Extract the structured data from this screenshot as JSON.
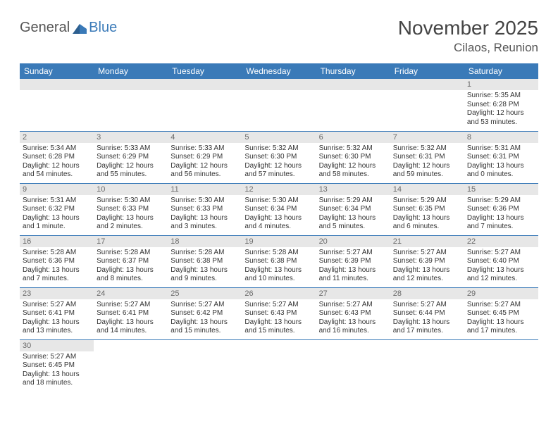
{
  "logo": {
    "part1": "General",
    "part2": "Blue"
  },
  "title": "November 2025",
  "subtitle": "Cilaos, Reunion",
  "colors": {
    "header_bg": "#3a7ab8",
    "header_text": "#ffffff",
    "daynum_bg": "#e7e7e7",
    "daynum_text": "#6a6a6a",
    "border": "#3a7ab8",
    "logo_gray": "#555555",
    "logo_blue": "#3a7ab8"
  },
  "weekdays": [
    "Sunday",
    "Monday",
    "Tuesday",
    "Wednesday",
    "Thursday",
    "Friday",
    "Saturday"
  ],
  "weeks": [
    [
      null,
      null,
      null,
      null,
      null,
      null,
      {
        "n": "1",
        "sr": "Sunrise: 5:35 AM",
        "ss": "Sunset: 6:28 PM",
        "d1": "Daylight: 12 hours",
        "d2": "and 53 minutes."
      }
    ],
    [
      {
        "n": "2",
        "sr": "Sunrise: 5:34 AM",
        "ss": "Sunset: 6:28 PM",
        "d1": "Daylight: 12 hours",
        "d2": "and 54 minutes."
      },
      {
        "n": "3",
        "sr": "Sunrise: 5:33 AM",
        "ss": "Sunset: 6:29 PM",
        "d1": "Daylight: 12 hours",
        "d2": "and 55 minutes."
      },
      {
        "n": "4",
        "sr": "Sunrise: 5:33 AM",
        "ss": "Sunset: 6:29 PM",
        "d1": "Daylight: 12 hours",
        "d2": "and 56 minutes."
      },
      {
        "n": "5",
        "sr": "Sunrise: 5:32 AM",
        "ss": "Sunset: 6:30 PM",
        "d1": "Daylight: 12 hours",
        "d2": "and 57 minutes."
      },
      {
        "n": "6",
        "sr": "Sunrise: 5:32 AM",
        "ss": "Sunset: 6:30 PM",
        "d1": "Daylight: 12 hours",
        "d2": "and 58 minutes."
      },
      {
        "n": "7",
        "sr": "Sunrise: 5:32 AM",
        "ss": "Sunset: 6:31 PM",
        "d1": "Daylight: 12 hours",
        "d2": "and 59 minutes."
      },
      {
        "n": "8",
        "sr": "Sunrise: 5:31 AM",
        "ss": "Sunset: 6:31 PM",
        "d1": "Daylight: 13 hours",
        "d2": "and 0 minutes."
      }
    ],
    [
      {
        "n": "9",
        "sr": "Sunrise: 5:31 AM",
        "ss": "Sunset: 6:32 PM",
        "d1": "Daylight: 13 hours",
        "d2": "and 1 minute."
      },
      {
        "n": "10",
        "sr": "Sunrise: 5:30 AM",
        "ss": "Sunset: 6:33 PM",
        "d1": "Daylight: 13 hours",
        "d2": "and 2 minutes."
      },
      {
        "n": "11",
        "sr": "Sunrise: 5:30 AM",
        "ss": "Sunset: 6:33 PM",
        "d1": "Daylight: 13 hours",
        "d2": "and 3 minutes."
      },
      {
        "n": "12",
        "sr": "Sunrise: 5:30 AM",
        "ss": "Sunset: 6:34 PM",
        "d1": "Daylight: 13 hours",
        "d2": "and 4 minutes."
      },
      {
        "n": "13",
        "sr": "Sunrise: 5:29 AM",
        "ss": "Sunset: 6:34 PM",
        "d1": "Daylight: 13 hours",
        "d2": "and 5 minutes."
      },
      {
        "n": "14",
        "sr": "Sunrise: 5:29 AM",
        "ss": "Sunset: 6:35 PM",
        "d1": "Daylight: 13 hours",
        "d2": "and 6 minutes."
      },
      {
        "n": "15",
        "sr": "Sunrise: 5:29 AM",
        "ss": "Sunset: 6:36 PM",
        "d1": "Daylight: 13 hours",
        "d2": "and 7 minutes."
      }
    ],
    [
      {
        "n": "16",
        "sr": "Sunrise: 5:28 AM",
        "ss": "Sunset: 6:36 PM",
        "d1": "Daylight: 13 hours",
        "d2": "and 7 minutes."
      },
      {
        "n": "17",
        "sr": "Sunrise: 5:28 AM",
        "ss": "Sunset: 6:37 PM",
        "d1": "Daylight: 13 hours",
        "d2": "and 8 minutes."
      },
      {
        "n": "18",
        "sr": "Sunrise: 5:28 AM",
        "ss": "Sunset: 6:38 PM",
        "d1": "Daylight: 13 hours",
        "d2": "and 9 minutes."
      },
      {
        "n": "19",
        "sr": "Sunrise: 5:28 AM",
        "ss": "Sunset: 6:38 PM",
        "d1": "Daylight: 13 hours",
        "d2": "and 10 minutes."
      },
      {
        "n": "20",
        "sr": "Sunrise: 5:27 AM",
        "ss": "Sunset: 6:39 PM",
        "d1": "Daylight: 13 hours",
        "d2": "and 11 minutes."
      },
      {
        "n": "21",
        "sr": "Sunrise: 5:27 AM",
        "ss": "Sunset: 6:39 PM",
        "d1": "Daylight: 13 hours",
        "d2": "and 12 minutes."
      },
      {
        "n": "22",
        "sr": "Sunrise: 5:27 AM",
        "ss": "Sunset: 6:40 PM",
        "d1": "Daylight: 13 hours",
        "d2": "and 12 minutes."
      }
    ],
    [
      {
        "n": "23",
        "sr": "Sunrise: 5:27 AM",
        "ss": "Sunset: 6:41 PM",
        "d1": "Daylight: 13 hours",
        "d2": "and 13 minutes."
      },
      {
        "n": "24",
        "sr": "Sunrise: 5:27 AM",
        "ss": "Sunset: 6:41 PM",
        "d1": "Daylight: 13 hours",
        "d2": "and 14 minutes."
      },
      {
        "n": "25",
        "sr": "Sunrise: 5:27 AM",
        "ss": "Sunset: 6:42 PM",
        "d1": "Daylight: 13 hours",
        "d2": "and 15 minutes."
      },
      {
        "n": "26",
        "sr": "Sunrise: 5:27 AM",
        "ss": "Sunset: 6:43 PM",
        "d1": "Daylight: 13 hours",
        "d2": "and 15 minutes."
      },
      {
        "n": "27",
        "sr": "Sunrise: 5:27 AM",
        "ss": "Sunset: 6:43 PM",
        "d1": "Daylight: 13 hours",
        "d2": "and 16 minutes."
      },
      {
        "n": "28",
        "sr": "Sunrise: 5:27 AM",
        "ss": "Sunset: 6:44 PM",
        "d1": "Daylight: 13 hours",
        "d2": "and 17 minutes."
      },
      {
        "n": "29",
        "sr": "Sunrise: 5:27 AM",
        "ss": "Sunset: 6:45 PM",
        "d1": "Daylight: 13 hours",
        "d2": "and 17 minutes."
      }
    ],
    [
      {
        "n": "30",
        "sr": "Sunrise: 5:27 AM",
        "ss": "Sunset: 6:45 PM",
        "d1": "Daylight: 13 hours",
        "d2": "and 18 minutes."
      },
      null,
      null,
      null,
      null,
      null,
      null
    ]
  ]
}
